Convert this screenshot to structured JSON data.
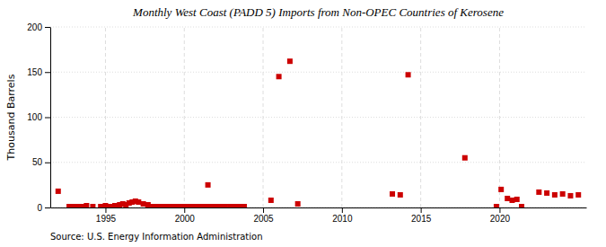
{
  "chart_data": {
    "type": "scatter",
    "title": "Monthly West Coast (PADD 5) Imports from Non-OPEC Countries of Kerosene",
    "ylabel": "Thousand Barrels",
    "annotation": "Source: U.S. Energy Information Administration",
    "color": "#cc0000",
    "marker": "square",
    "grid": true,
    "xlim": [
      1991.5,
      2025.5
    ],
    "ylim": [
      0,
      200
    ],
    "xticks": [
      1995,
      2000,
      2005,
      2010,
      2015,
      2020
    ],
    "yticks": [
      0,
      50,
      100,
      150,
      200
    ],
    "x": [
      1992.0,
      1992.7,
      1993.8,
      1994.2,
      1994.7,
      1995.0,
      1995.3,
      1995.6,
      1995.9,
      1996.1,
      1996.3,
      1996.5,
      1996.7,
      1996.9,
      1997.1,
      1997.4,
      1997.7,
      1993.0,
      1993.3,
      1993.6,
      1998.0,
      1998.3,
      1998.6,
      1998.9,
      1999.1,
      1999.4,
      1999.7,
      2000.0,
      2000.3,
      2000.6,
      2000.9,
      2001.2,
      2001.5,
      2001.8,
      2002.0,
      2002.3,
      2002.6,
      2002.9,
      2003.2,
      2003.5,
      2003.8,
      2001.5,
      2005.5,
      2006.0,
      2006.7,
      2007.2,
      2013.2,
      2013.7,
      2014.2,
      2017.8,
      2019.8,
      2020.1,
      2020.5,
      2020.8,
      2021.1,
      2021.4,
      2022.5,
      2023.0,
      2023.5,
      2024.0,
      2024.5,
      2025.0
    ],
    "values": [
      18,
      1,
      2,
      1,
      1,
      2,
      1,
      2,
      3,
      4,
      3,
      5,
      6,
      7,
      6,
      4,
      3,
      1,
      1,
      1,
      1,
      1,
      1,
      1,
      1,
      1,
      1,
      1,
      1,
      1,
      1,
      1,
      1,
      1,
      1,
      1,
      1,
      1,
      1,
      1,
      1,
      25,
      8,
      145,
      162,
      4,
      15,
      14,
      147,
      55,
      1,
      20,
      10,
      8,
      9,
      1,
      17,
      16,
      14,
      15,
      13,
      14
    ]
  }
}
